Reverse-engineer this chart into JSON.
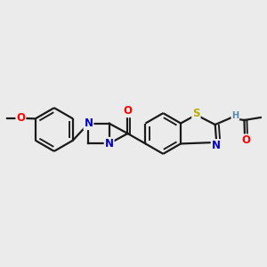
{
  "bg_color": "#ebebeb",
  "bond_color": "#1a1a1a",
  "bond_width": 1.6,
  "dbo": 0.055,
  "atom_colors": {
    "O": "#ff0000",
    "N": "#0000cc",
    "S": "#bbaa00",
    "H": "#5588aa",
    "C": "#1a1a1a"
  },
  "fs": 8.5,
  "fs2": 7.0
}
